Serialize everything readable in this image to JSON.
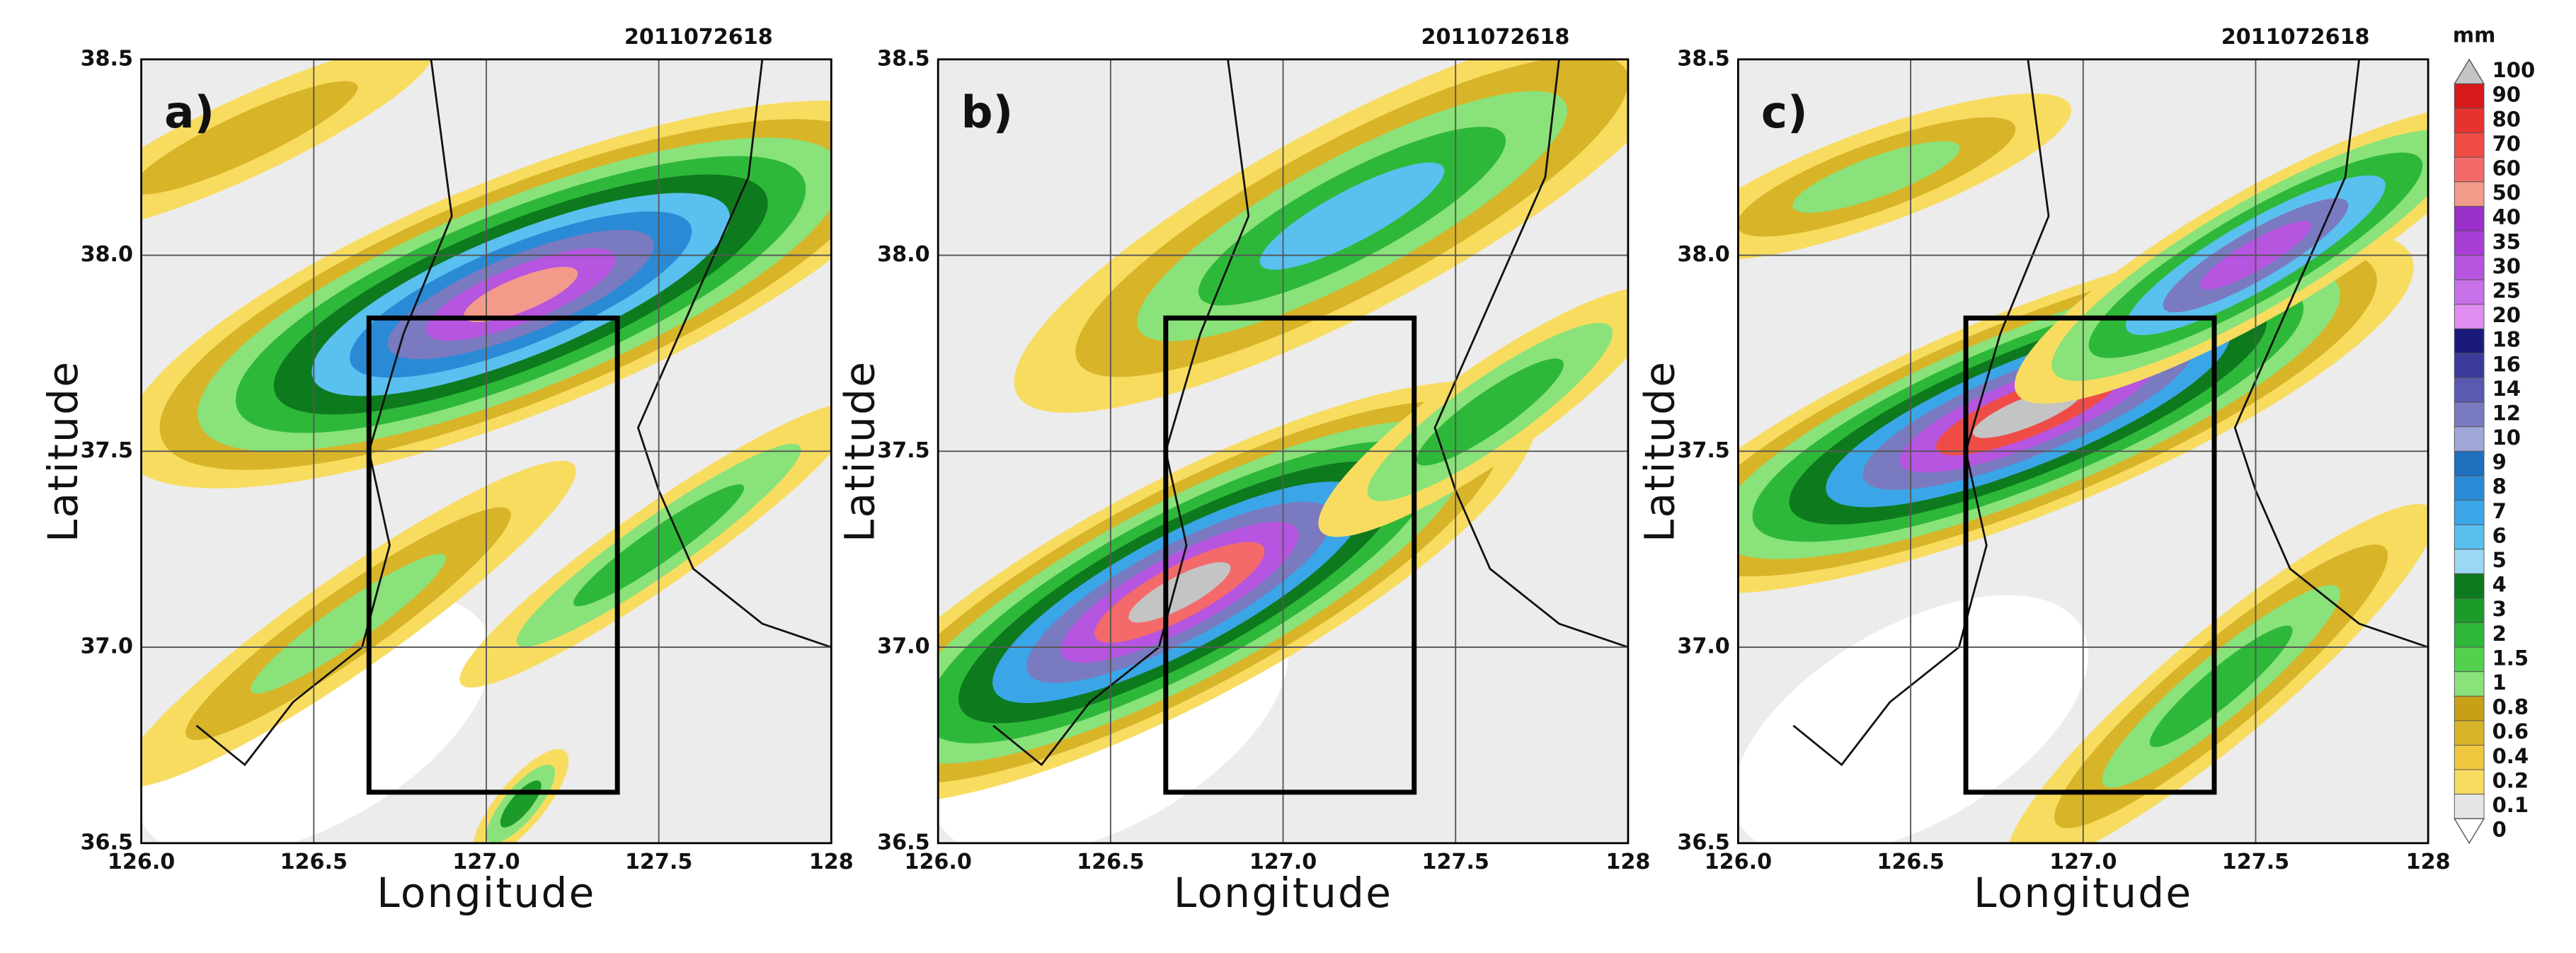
{
  "panels": [
    {
      "label": "a)",
      "timestamp": "2011072618",
      "xlabel": "Longitude",
      "ylabel": "Latitude",
      "xticks": [
        "126.0",
        "126.5",
        "127.0",
        "127.5",
        "128"
      ],
      "yticks": [
        "38.5",
        "38.0",
        "37.5",
        "37.0",
        "36.5"
      ]
    },
    {
      "label": "b)",
      "timestamp": "2011072618",
      "xlabel": "Longitude",
      "ylabel": "Latitude",
      "xticks": [
        "126.0",
        "126.5",
        "127.0",
        "127.5",
        "128"
      ],
      "yticks": [
        "38.5",
        "38.0",
        "37.5",
        "37.0",
        "36.5"
      ]
    },
    {
      "label": "c)",
      "timestamp": "2011072618",
      "xlabel": "Longitude",
      "ylabel": "Latitude",
      "xticks": [
        "126.0",
        "126.5",
        "127.0",
        "127.5",
        "128"
      ],
      "yticks": [
        "38.5",
        "38.0",
        "37.5",
        "37.0",
        "36.5"
      ]
    }
  ],
  "colorbar": {
    "unit": "mm",
    "levels": [
      {
        "label": "100",
        "color": "#c4c4c4"
      },
      {
        "label": "90",
        "color": "#d7191c"
      },
      {
        "label": "80",
        "color": "#e8322e"
      },
      {
        "label": "70",
        "color": "#f04c46"
      },
      {
        "label": "60",
        "color": "#f46a6a"
      },
      {
        "label": "50",
        "color": "#f49a8a"
      },
      {
        "label": "40",
        "color": "#9b2fc9"
      },
      {
        "label": "35",
        "color": "#a83ed6"
      },
      {
        "label": "30",
        "color": "#b655e0"
      },
      {
        "label": "25",
        "color": "#c870e8"
      },
      {
        "label": "20",
        "color": "#e08cf0"
      },
      {
        "label": "18",
        "color": "#1a1a7a"
      },
      {
        "label": "16",
        "color": "#3a3a9a"
      },
      {
        "label": "14",
        "color": "#5a5ab0"
      },
      {
        "label": "12",
        "color": "#7a7ac0"
      },
      {
        "label": "10",
        "color": "#a0a8d8"
      },
      {
        "label": "9",
        "color": "#1f6fbf"
      },
      {
        "label": "8",
        "color": "#2b8ad6"
      },
      {
        "label": "7",
        "color": "#3aa6e8"
      },
      {
        "label": "6",
        "color": "#5ac0f0"
      },
      {
        "label": "5",
        "color": "#9ad8f4"
      },
      {
        "label": "4",
        "color": "#0e7a1e"
      },
      {
        "label": "3",
        "color": "#1c9a2a"
      },
      {
        "label": "2",
        "color": "#2eb83a"
      },
      {
        "label": "1.5",
        "color": "#52d04e"
      },
      {
        "label": "1",
        "color": "#8ae27a"
      },
      {
        "label": "0.8",
        "color": "#c8a018"
      },
      {
        "label": "0.6",
        "color": "#d8b428"
      },
      {
        "label": "0.4",
        "color": "#f0c840"
      },
      {
        "label": "0.2",
        "color": "#f8dc60"
      },
      {
        "label": "0.1",
        "color": "#e6e6e6"
      },
      {
        "label": "0",
        "color": "#ffffff"
      }
    ]
  }
}
